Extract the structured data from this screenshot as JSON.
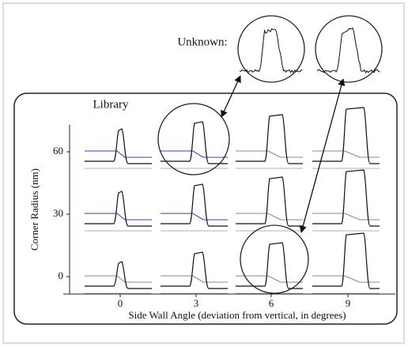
{
  "diagram": {
    "unknown_label": "Unknown:",
    "library_label": "Library",
    "y_axis": {
      "title": "Corner Radius (nm)",
      "ticks": [
        "60",
        "30",
        "0"
      ]
    },
    "x_axis": {
      "title": "Side Wall Angle (deviation from vertical, in degrees)",
      "ticks": [
        "0",
        "3",
        "6",
        "9"
      ]
    }
  }
}
